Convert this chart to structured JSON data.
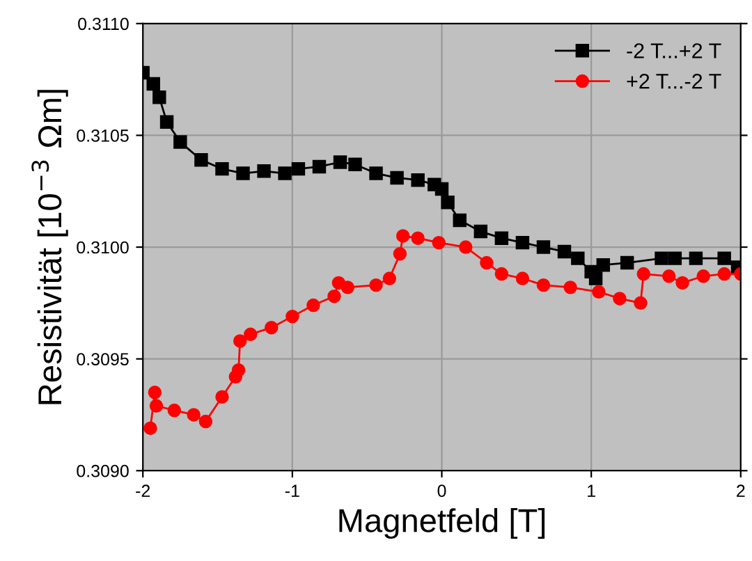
{
  "chart_data": {
    "type": "line",
    "xlabel": "Magnetfeld [T]",
    "ylabel": "Resistivität [10$^{−3}$ Ωm]",
    "xlim": [
      -2,
      2
    ],
    "xticks": [
      -2,
      -1,
      0,
      1,
      2
    ],
    "ylim": [
      0.309,
      0.311
    ],
    "yticks": [
      {
        "value": 0.309,
        "label": "0.3090"
      },
      {
        "value": 0.3095,
        "label": "0.3095"
      },
      {
        "value": 0.31,
        "label": "0.3100"
      },
      {
        "value": 0.3105,
        "label": "0.3105"
      },
      {
        "value": 0.311,
        "label": "0.3110"
      }
    ],
    "grid": true,
    "legend": "top right",
    "series": [
      {
        "name": "-2 T...+2 T",
        "color": "#000000",
        "marker": "square",
        "x": [
          -2.0,
          -1.93,
          -1.89,
          -1.84,
          -1.75,
          -1.61,
          -1.47,
          -1.33,
          -1.19,
          -1.05,
          -0.96,
          -0.82,
          -0.68,
          -0.58,
          -0.44,
          -0.3,
          -0.16,
          -0.05,
          0.0,
          0.04,
          0.12,
          0.26,
          0.4,
          0.54,
          0.68,
          0.82,
          0.91,
          1.0,
          1.03,
          1.08,
          1.24,
          1.47,
          1.56,
          1.7,
          1.89,
          1.98
        ],
        "values": [
          0.31078,
          0.31073,
          0.31067,
          0.31056,
          0.31047,
          0.31039,
          0.31035,
          0.31033,
          0.31034,
          0.31033,
          0.31035,
          0.31036,
          0.31038,
          0.31037,
          0.31033,
          0.31031,
          0.3103,
          0.31028,
          0.31026,
          0.3102,
          0.31012,
          0.31007,
          0.31004,
          0.31002,
          0.31,
          0.30998,
          0.30995,
          0.30989,
          0.30986,
          0.30992,
          0.30993,
          0.30995,
          0.30995,
          0.30995,
          0.30995,
          0.30991
        ]
      },
      {
        "name": "+2 T...-2 T",
        "color": "#ff0000",
        "marker": "circle",
        "x": [
          -1.95,
          -1.92,
          -1.91,
          -1.79,
          -1.66,
          -1.58,
          -1.47,
          -1.38,
          -1.36,
          -1.35,
          -1.28,
          -1.14,
          -1.0,
          -0.86,
          -0.72,
          -0.69,
          -0.63,
          -0.44,
          -0.35,
          -0.28,
          -0.26,
          -0.16,
          -0.02,
          0.16,
          0.3,
          0.4,
          0.54,
          0.68,
          0.86,
          1.05,
          1.19,
          1.33,
          1.35,
          1.52,
          1.61,
          1.75,
          1.89,
          2.0
        ],
        "values": [
          0.30919,
          0.30935,
          0.30929,
          0.30927,
          0.30925,
          0.30922,
          0.30933,
          0.30942,
          0.30945,
          0.30958,
          0.30961,
          0.30964,
          0.30969,
          0.30974,
          0.30978,
          0.30984,
          0.30982,
          0.30983,
          0.30986,
          0.30997,
          0.31005,
          0.31004,
          0.31002,
          0.31,
          0.30993,
          0.30988,
          0.30986,
          0.30983,
          0.30982,
          0.3098,
          0.30977,
          0.30975,
          0.30988,
          0.30987,
          0.30984,
          0.30987,
          0.30988,
          0.30988
        ]
      }
    ]
  }
}
